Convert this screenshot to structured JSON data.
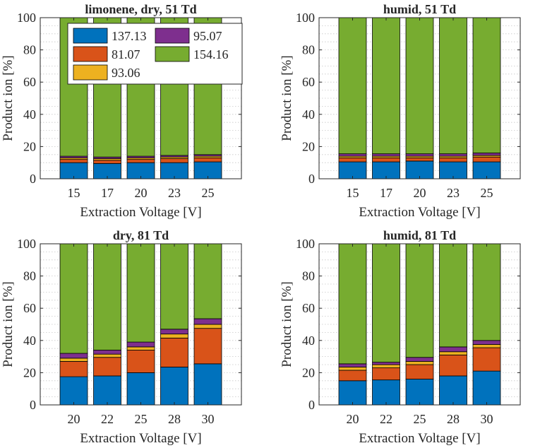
{
  "colors": {
    "137.13": "#0072BD",
    "81.07": "#D95319",
    "93.06": "#EDB120",
    "95.07": "#7E2F8E",
    "154.16": "#77AC30"
  },
  "legend": {
    "entries": [
      "137.13",
      "95.07",
      "81.07",
      "154.16",
      "93.06"
    ]
  },
  "chart_data": [
    {
      "type": "bar",
      "stacked": true,
      "title": "limonene, dry, 51 Td",
      "xlabel": "Extraction Voltage [V]",
      "ylabel": "Product ion [%]",
      "ylim": [
        0,
        100
      ],
      "yticks": [
        "0",
        "20",
        "40",
        "60",
        "80",
        "100"
      ],
      "categories": [
        "15",
        "17",
        "20",
        "23",
        "25"
      ],
      "series": [
        {
          "name": "137.13",
          "values": [
            10,
            9.5,
            10,
            10,
            10.5
          ]
        },
        {
          "name": "81.07",
          "values": [
            2,
            2,
            2,
            2.5,
            2.5
          ]
        },
        {
          "name": "93.06",
          "values": [
            1,
            1,
            1,
            1,
            1
          ]
        },
        {
          "name": "95.07",
          "values": [
            1,
            1,
            1,
            1,
            1
          ]
        },
        {
          "name": "154.16",
          "values": [
            86,
            86.5,
            86,
            85.5,
            85
          ]
        }
      ],
      "legend": "top-left"
    },
    {
      "type": "bar",
      "stacked": true,
      "title": "humid, 51 Td",
      "xlabel": "Extraction Voltage [V]",
      "ylabel": "Product ion [%]",
      "ylim": [
        0,
        100
      ],
      "yticks": [
        "0",
        "20",
        "40",
        "60",
        "80",
        "100"
      ],
      "categories": [
        "15",
        "17",
        "20",
        "23",
        "25"
      ],
      "series": [
        {
          "name": "137.13",
          "values": [
            10.5,
            10.5,
            11,
            10.5,
            10.5
          ]
        },
        {
          "name": "81.07",
          "values": [
            2.5,
            2.5,
            2,
            2.5,
            3
          ]
        },
        {
          "name": "93.06",
          "values": [
            1,
            1,
            1,
            1,
            1
          ]
        },
        {
          "name": "95.07",
          "values": [
            1.5,
            1.5,
            1.5,
            1.5,
            1.5
          ]
        },
        {
          "name": "154.16",
          "values": [
            84.5,
            84.5,
            84.5,
            84.5,
            84
          ]
        }
      ]
    },
    {
      "type": "bar",
      "stacked": true,
      "title": "dry, 81 Td",
      "xlabel": "Extraction Voltage [V]",
      "ylabel": "Product ion [%]",
      "ylim": [
        0,
        100
      ],
      "yticks": [
        "0",
        "20",
        "40",
        "60",
        "80",
        "100"
      ],
      "categories": [
        "20",
        "22",
        "25",
        "28",
        "30"
      ],
      "series": [
        {
          "name": "137.13",
          "values": [
            17.5,
            18,
            20,
            23.5,
            25.5
          ]
        },
        {
          "name": "81.07",
          "values": [
            9.5,
            11.5,
            14,
            18,
            22
          ]
        },
        {
          "name": "93.06",
          "values": [
            2,
            2,
            2,
            2.5,
            2.5
          ]
        },
        {
          "name": "95.07",
          "values": [
            3,
            2.5,
            3,
            3,
            3.5
          ]
        },
        {
          "name": "154.16",
          "values": [
            68,
            66,
            61,
            53,
            46.5
          ]
        }
      ]
    },
    {
      "type": "bar",
      "stacked": true,
      "title": "humid, 81 Td",
      "xlabel": "Extraction Voltage [V]",
      "ylabel": "Product ion [%]",
      "ylim": [
        0,
        100
      ],
      "yticks": [
        "0",
        "20",
        "40",
        "60",
        "80",
        "100"
      ],
      "categories": [
        "20",
        "22",
        "25",
        "28",
        "30"
      ],
      "series": [
        {
          "name": "137.13",
          "values": [
            15,
            15.5,
            16,
            18,
            21
          ]
        },
        {
          "name": "81.07",
          "values": [
            6.5,
            7.5,
            9,
            13,
            14.5
          ]
        },
        {
          "name": "93.06",
          "values": [
            2,
            2,
            2,
            2,
            2
          ]
        },
        {
          "name": "95.07",
          "values": [
            2,
            1.5,
            2.5,
            3,
            2.5
          ]
        },
        {
          "name": "154.16",
          "values": [
            74.5,
            73.5,
            70.5,
            64,
            60
          ]
        }
      ]
    }
  ]
}
